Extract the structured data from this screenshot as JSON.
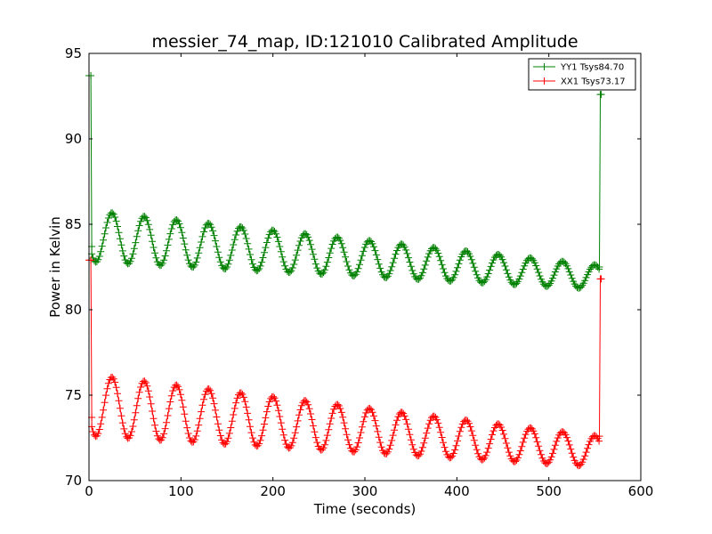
{
  "chart_data": {
    "type": "line",
    "title": "messier_74_map, ID:121010 Calibrated Amplitude",
    "xlabel": "Time (seconds)",
    "ylabel": "Power in Kelvin",
    "xlim": [
      0,
      600
    ],
    "ylim": [
      70,
      95
    ],
    "xticks": [
      0,
      100,
      200,
      300,
      400,
      500,
      600
    ],
    "yticks": [
      70,
      75,
      80,
      85,
      90,
      95
    ],
    "grid": false,
    "legend_position": "top-right",
    "marker": "+",
    "series": [
      {
        "name": "YY1 Tsys84.70",
        "color": "#008000",
        "start": [
          [
            0,
            93.7
          ],
          [
            2,
            93.7
          ],
          [
            3,
            83.7
          ]
        ],
        "end": [
          [
            555,
            82.5
          ],
          [
            556,
            92.6
          ],
          [
            557,
            92.6
          ]
        ],
        "baseline_start": 84.3,
        "baseline_end": 81.9,
        "amplitude_start": 1.5,
        "amplitude_end": 0.7,
        "period": 35,
        "phase_peak": 25,
        "t_start": 3,
        "t_end": 555
      },
      {
        "name": "XX1 Tsys73.17",
        "color": "#ff0000",
        "start": [
          [
            0,
            82.9
          ],
          [
            2,
            82.9
          ],
          [
            3,
            73.7
          ]
        ],
        "end": [
          [
            555,
            72.6
          ],
          [
            556,
            81.8
          ],
          [
            557,
            81.8
          ]
        ],
        "baseline_start": 74.4,
        "baseline_end": 71.7,
        "amplitude_start": 1.8,
        "amplitude_end": 0.9,
        "period": 35,
        "phase_peak": 25,
        "t_start": 3,
        "t_end": 555
      }
    ]
  }
}
